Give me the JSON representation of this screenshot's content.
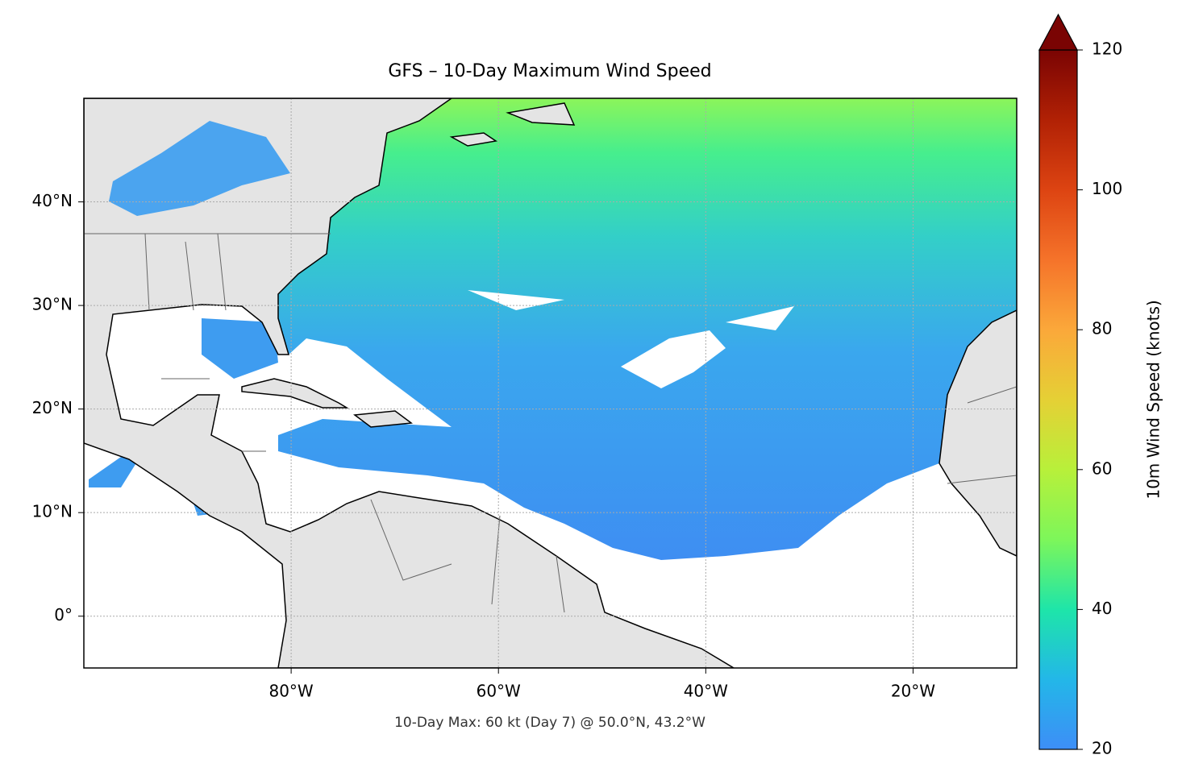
{
  "title": "GFS – 10-Day Maximum Wind Speed",
  "footnote": "10-Day Max: 60 kt (Day 7) @ 50.0°N, 43.2°W",
  "map": {
    "xlim": [
      -100,
      -10
    ],
    "ylim": [
      -5,
      50
    ],
    "xticks": [
      {
        "value": -80,
        "label": "80°W"
      },
      {
        "value": -60,
        "label": "60°W"
      },
      {
        "value": -40,
        "label": "40°W"
      },
      {
        "value": -20,
        "label": "20°W"
      }
    ],
    "yticks": [
      {
        "value": 0,
        "label": "0°"
      },
      {
        "value": 10,
        "label": "10°N"
      },
      {
        "value": 20,
        "label": "20°N"
      },
      {
        "value": 30,
        "label": "30°N"
      },
      {
        "value": 40,
        "label": "40°N"
      }
    ],
    "grid": true
  },
  "colorbar": {
    "label": "10m Wind Speed (knots)",
    "lim": [
      20,
      120
    ],
    "ticks": [
      20,
      40,
      60,
      80,
      100,
      120
    ],
    "extend": "max"
  }
}
